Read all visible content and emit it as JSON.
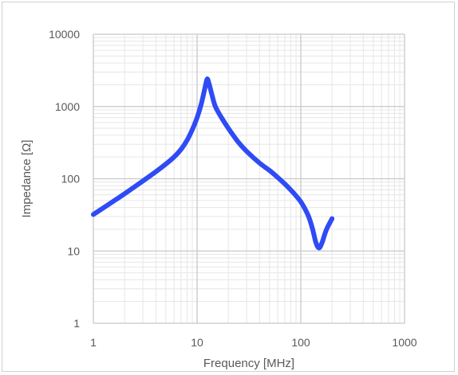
{
  "chart_data": {
    "type": "line",
    "title": "",
    "xlabel": "Frequency [MHz]",
    "ylabel": "Impedance  [Ω]",
    "xscale": "log",
    "yscale": "log",
    "xlim": [
      1,
      1000
    ],
    "ylim": [
      1,
      10000
    ],
    "grid": true,
    "legend": "none",
    "x_tick_labels": [
      "1",
      "10",
      "100",
      "1000"
    ],
    "y_tick_labels": [
      "1",
      "10",
      "100",
      "1000",
      "10000"
    ],
    "series": [
      {
        "color": "#2e4bf5",
        "x": [
          1,
          1.5,
          2,
          3,
          4,
          5,
          6,
          7,
          8,
          9,
          10,
          11,
          12,
          12.5,
          13,
          14,
          15,
          17,
          20,
          25,
          30,
          40,
          50,
          60,
          70,
          80,
          90,
          100,
          110,
          120,
          130,
          140,
          150,
          160,
          170,
          180,
          200
        ],
        "y": [
          32,
          47,
          62,
          93,
          125,
          160,
          200,
          255,
          340,
          480,
          700,
          1100,
          1900,
          2400,
          2100,
          1400,
          1000,
          720,
          500,
          320,
          240,
          165,
          130,
          104,
          85,
          70,
          58,
          48,
          38,
          29,
          20,
          13,
          11,
          13,
          17,
          21,
          28
        ]
      }
    ]
  }
}
